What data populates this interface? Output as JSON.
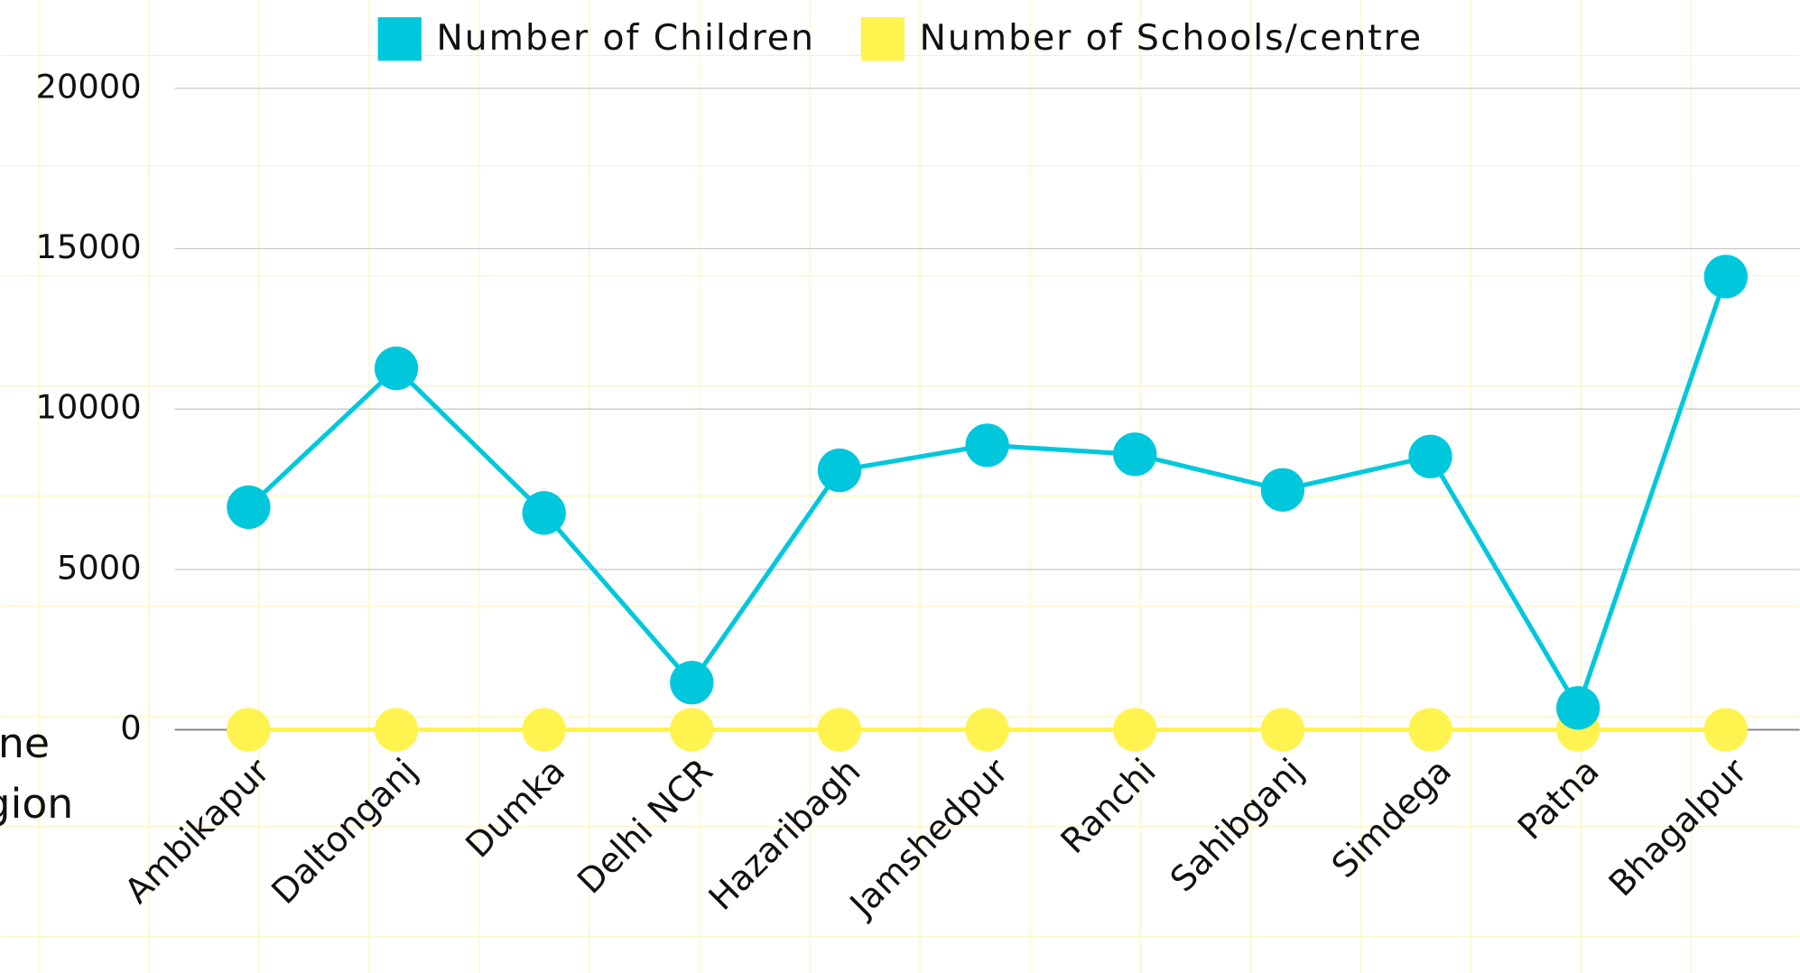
{
  "chart_data": {
    "type": "line",
    "x_label_lines": [
      "ne",
      "gion"
    ],
    "categories": [
      "Ambikapur",
      "Daltonganj",
      "Dumka",
      "Delhi NCR",
      "Hazaribagh",
      "Jamshedpur",
      "Ranchi",
      "Sahibganj",
      "Simdega",
      "Patna",
      "Bhagalpur"
    ],
    "series": [
      {
        "name": "Number of Children",
        "color": "#00c8dc",
        "values": [
          6940,
          11270,
          6760,
          1470,
          8090,
          8870,
          8590,
          7480,
          8520,
          680,
          14130
        ]
      },
      {
        "name": "Number of Schools/centre",
        "color": "#fff44f",
        "values": [
          0,
          0,
          0,
          0,
          0,
          0,
          0,
          0,
          0,
          0,
          0
        ]
      }
    ],
    "ylim": [
      0,
      20000
    ],
    "yticks": [
      0,
      5000,
      10000,
      15000,
      20000
    ],
    "grid": true,
    "legend": "top"
  }
}
